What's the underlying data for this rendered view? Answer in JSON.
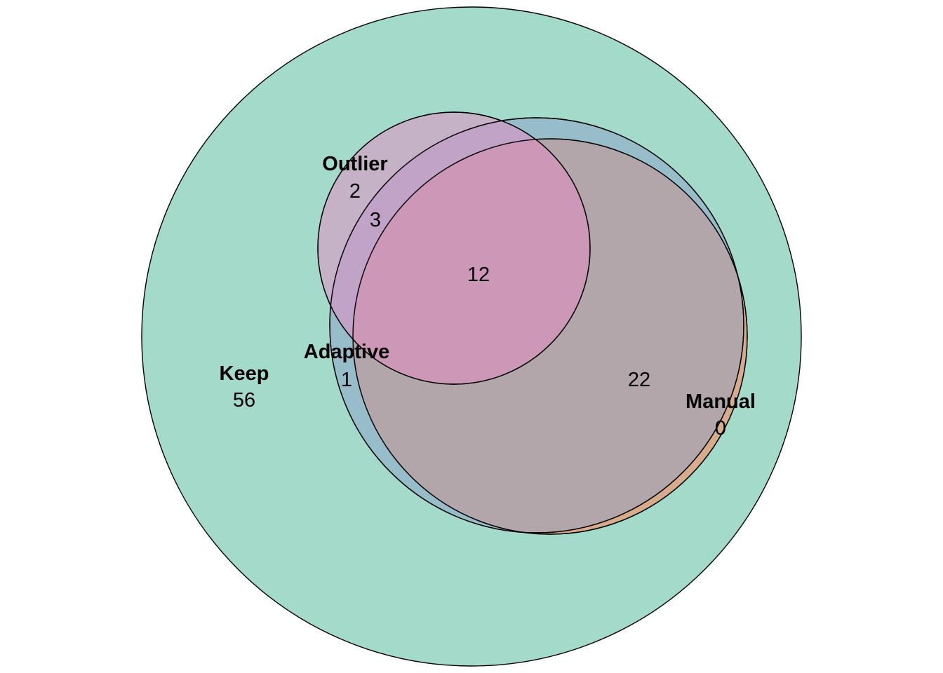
{
  "diagram": {
    "type": "euler-venn",
    "sets": [
      {
        "id": "keep",
        "label": "Keep",
        "color": "#66C2A5",
        "opacity": 0.6
      },
      {
        "id": "outlier",
        "label": "Outlier",
        "color": "#E78AC3",
        "opacity": 0.6
      },
      {
        "id": "adaptive",
        "label": "Adaptive",
        "color": "#8DA0CB",
        "opacity": 0.5
      },
      {
        "id": "manual",
        "label": "Manual",
        "color": "#FC8D62",
        "opacity": 0.6
      }
    ],
    "regions": [
      {
        "id": "keep-only",
        "sets": [
          "keep"
        ],
        "count": "56"
      },
      {
        "id": "outlier-only",
        "sets": [
          "keep",
          "outlier"
        ],
        "count": "2"
      },
      {
        "id": "outlier-adaptive",
        "sets": [
          "keep",
          "outlier",
          "adaptive"
        ],
        "count": "3"
      },
      {
        "id": "outlier-adaptive-manual",
        "sets": [
          "keep",
          "outlier",
          "adaptive",
          "manual"
        ],
        "count": "12"
      },
      {
        "id": "adaptive-only",
        "sets": [
          "keep",
          "adaptive"
        ],
        "count": "1"
      },
      {
        "id": "adaptive-manual",
        "sets": [
          "keep",
          "adaptive",
          "manual"
        ],
        "count": "22"
      },
      {
        "id": "manual-only",
        "sets": [
          "keep",
          "manual"
        ],
        "count": "0"
      }
    ]
  }
}
